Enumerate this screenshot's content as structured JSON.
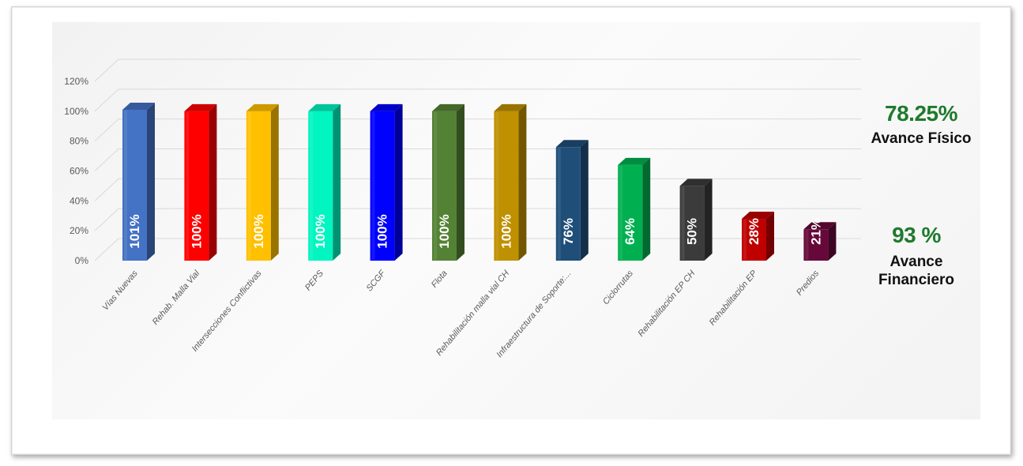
{
  "chart_data": {
    "type": "bar",
    "categories": [
      "Vías Nuevas",
      "Rehab. Malla Vial",
      "Intersecciones Conflictivas",
      "PEPS",
      "SCGF",
      "Flota",
      "Rehabilitación malla vial CH",
      "Infraestructura de Soporte:...",
      "Ciclorrutas",
      "Rehabilitación EP CH",
      "Rehabilitación EP",
      "Predios"
    ],
    "values": [
      101,
      100,
      100,
      100,
      100,
      100,
      100,
      76,
      64,
      50,
      28,
      21
    ],
    "data_labels": [
      "101%",
      "100%",
      "100%",
      "100%",
      "100%",
      "100%",
      "100%",
      "76%",
      "64%",
      "50%",
      "28%",
      "21%"
    ],
    "colors": [
      "#4472c4",
      "#ff0000",
      "#ffc000",
      "#00f5c0",
      "#0000ff",
      "#548235",
      "#bf9000",
      "#1f4e79",
      "#00b050",
      "#3b3b3b",
      "#c00000",
      "#66093a"
    ],
    "ylim": [
      0,
      120
    ],
    "yticks": [
      0,
      20,
      40,
      60,
      80,
      100,
      120
    ],
    "ytick_labels": [
      "0%",
      "20%",
      "40%",
      "60%",
      "80%",
      "100%",
      "120%"
    ],
    "grid": true,
    "style": "3d-column"
  },
  "kpis": {
    "physical_value": "78.25%",
    "physical_label": "Avance Físico",
    "financial_value": "93 %",
    "financial_label_line1": "Avance",
    "financial_label_line2": "Financiero"
  }
}
